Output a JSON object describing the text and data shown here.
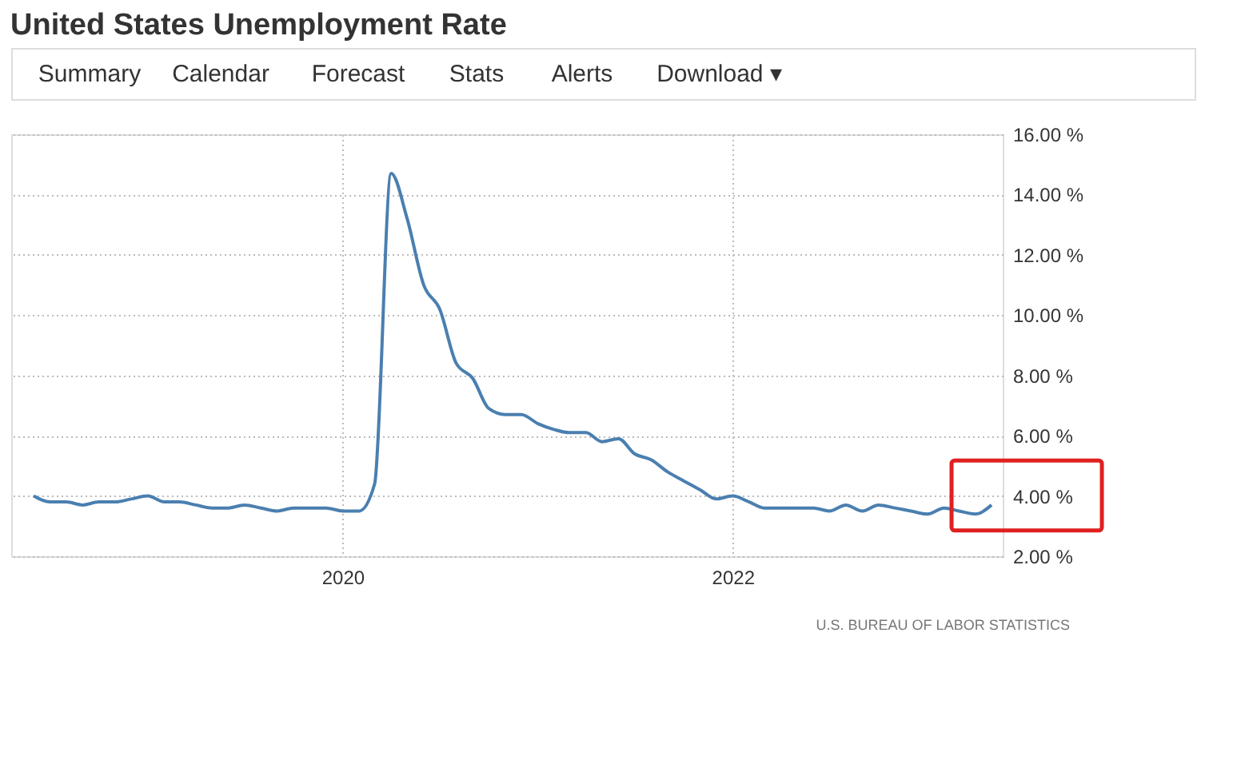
{
  "chart_data": {
    "type": "line",
    "title": "United States Unemployment Rate",
    "annotations": [
      "Summary",
      "Calendar",
      "Forecast",
      "Stats",
      "Alerts",
      "Download ▾",
      "U.S. BUREAU OF LABOR STATISTICS"
    ],
    "x": [
      "2018-06",
      "2018-07",
      "2018-08",
      "2018-09",
      "2018-10",
      "2018-11",
      "2018-12",
      "2019-01",
      "2019-02",
      "2019-03",
      "2019-04",
      "2019-05",
      "2019-06",
      "2019-07",
      "2019-08",
      "2019-09",
      "2019-10",
      "2019-11",
      "2019-12",
      "2020-01",
      "2020-02",
      "2020-03",
      "2020-04",
      "2020-05",
      "2020-06",
      "2020-07",
      "2020-08",
      "2020-09",
      "2020-10",
      "2020-11",
      "2020-12",
      "2021-01",
      "2021-02",
      "2021-03",
      "2021-04",
      "2021-05",
      "2021-06",
      "2021-07",
      "2021-08",
      "2021-09",
      "2021-10",
      "2021-11",
      "2021-12",
      "2022-01",
      "2022-02",
      "2022-03",
      "2022-04",
      "2022-05",
      "2022-06",
      "2022-07",
      "2022-08",
      "2022-09",
      "2022-10",
      "2022-11",
      "2022-12",
      "2023-01",
      "2023-02",
      "2023-03",
      "2023-04",
      "2023-05"
    ],
    "series": [
      {
        "color": "#4a7fb0",
        "values": [
          4.0,
          3.8,
          3.8,
          3.7,
          3.8,
          3.8,
          3.9,
          4.0,
          3.8,
          3.8,
          3.7,
          3.6,
          3.6,
          3.7,
          3.6,
          3.5,
          3.6,
          3.6,
          3.6,
          3.5,
          3.5,
          4.4,
          14.7,
          13.2,
          11.0,
          10.2,
          8.4,
          7.9,
          6.9,
          6.7,
          6.7,
          6.4,
          6.2,
          6.1,
          6.1,
          5.8,
          5.9,
          5.4,
          5.2,
          4.8,
          4.5,
          4.2,
          3.9,
          4.0,
          3.8,
          3.6,
          3.6,
          3.6,
          3.6,
          3.5,
          3.7,
          3.5,
          3.7,
          3.6,
          3.5,
          3.4,
          3.6,
          3.5,
          3.4,
          3.7
        ]
      }
    ],
    "xlim": [
      "2018-04-20",
      "2023-05-22"
    ],
    "xticks": [
      "2020",
      "2022"
    ],
    "ylim": [
      2,
      16
    ],
    "yticks": [
      {
        "value": 2,
        "label": "2.00 %"
      },
      {
        "value": 4,
        "label": "4.00 %"
      },
      {
        "value": 6,
        "label": "6.00 %"
      },
      {
        "value": 8,
        "label": "8.00 %"
      },
      {
        "value": 10,
        "label": "10.00 %"
      },
      {
        "value": 12,
        "label": "12.00 %"
      },
      {
        "value": 14,
        "label": "14.00 %"
      },
      {
        "value": 16,
        "label": "16.00 %"
      }
    ],
    "grid": true,
    "line_style": "solid",
    "marker": "none"
  }
}
